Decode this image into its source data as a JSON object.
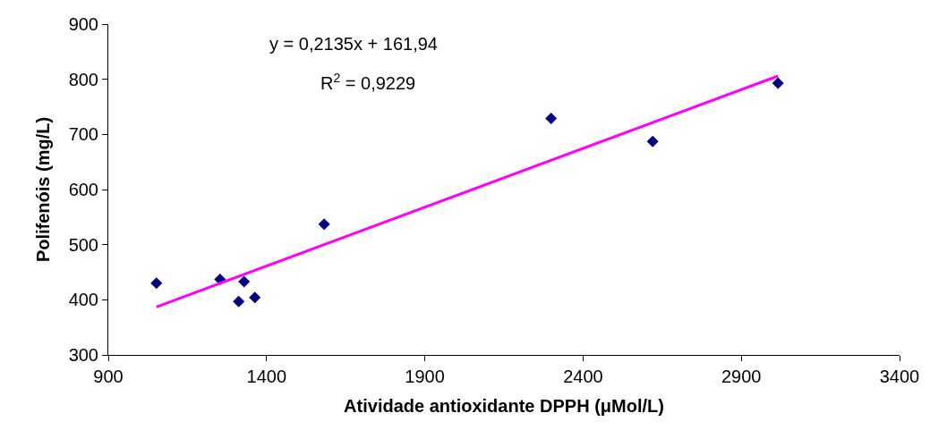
{
  "chart_data": {
    "type": "scatter",
    "xlabel": "Atividade antioxidante DPPH (μMol/L)",
    "ylabel": "Polifenóis (mg/L)",
    "x": [
      1052,
      1253,
      1329,
      1312,
      1363,
      1582,
      2299,
      2620,
      3016
    ],
    "series": [
      {
        "color": "#000080",
        "marker": "diamond",
        "values": [
          430,
          437,
          433,
          397,
          404,
          537,
          729,
          687,
          793
        ]
      },
      {
        "type": "line",
        "color": "#ff00ff",
        "marker": "none",
        "line_style": "solid",
        "x": [
          1052,
          3016
        ],
        "values": [
          387,
          806
        ]
      }
    ],
    "xlim": [
      900,
      3400
    ],
    "xticks": [
      900,
      1400,
      1900,
      2400,
      2900,
      3400
    ],
    "ylim": [
      300,
      900
    ],
    "yticks": [
      300,
      400,
      500,
      600,
      700,
      800,
      900
    ],
    "grid": false,
    "legend": false,
    "annotations": [
      "y = 0,2135x + 161,94",
      "R$^{2}$ = 0,9229"
    ]
  }
}
